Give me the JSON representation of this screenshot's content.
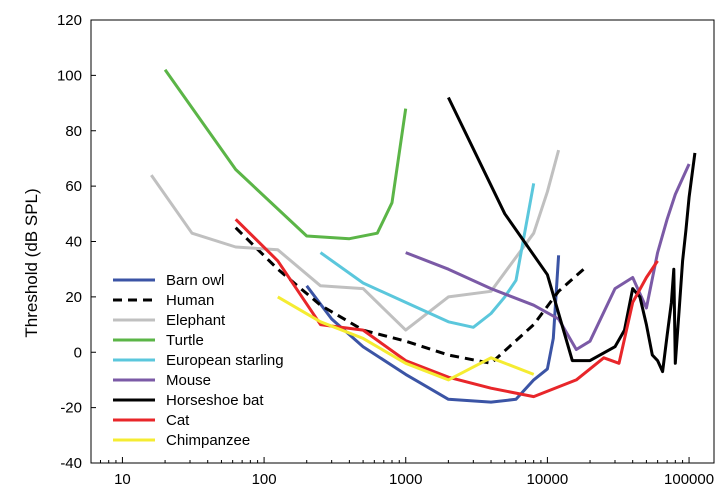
{
  "chart_data": {
    "type": "line",
    "title": "",
    "xlabel": "",
    "ylabel": "Threshold (dB SPL)",
    "xscale": "log",
    "xlim": [
      6,
      150000
    ],
    "ylim": [
      -40,
      120
    ],
    "yticks": [
      -40,
      -20,
      0,
      20,
      40,
      60,
      80,
      100,
      120
    ],
    "yticklabels": [
      "-40",
      "-20",
      "0",
      "20",
      "40",
      "60",
      "80",
      "100",
      "120"
    ],
    "xticks": [
      10,
      100,
      1000,
      10000,
      100000
    ],
    "xticklabels": [
      "10",
      "100",
      "1000",
      "10000",
      "100000"
    ],
    "grid": false,
    "legend_position": "bottom-left",
    "series": [
      {
        "name": "Barn owl",
        "color": "#3b54a5",
        "dash": "solid",
        "x": [
          200,
          300,
          500,
          1000,
          2000,
          4000,
          6000,
          8000,
          10000,
          11000,
          12000
        ],
        "y": [
          24,
          12,
          2,
          -8,
          -17,
          -18,
          -17,
          -10,
          -6,
          5,
          35
        ]
      },
      {
        "name": "Human",
        "color": "#000000",
        "dash": "dashed",
        "x": [
          63,
          125,
          250,
          500,
          1000,
          2000,
          4000,
          8000,
          12000,
          18000
        ],
        "y": [
          45,
          30,
          17,
          8,
          4,
          -1,
          -4,
          10,
          22,
          30
        ]
      },
      {
        "name": "Elephant",
        "color": "#c0c0c0",
        "dash": "solid",
        "x": [
          16,
          31,
          63,
          125,
          250,
          500,
          1000,
          2000,
          4000,
          8000,
          10000,
          12000
        ],
        "y": [
          64,
          43,
          38,
          37,
          24,
          23,
          8,
          20,
          22,
          43,
          58,
          73
        ]
      },
      {
        "name": "Turtle",
        "color": "#5bb547",
        "dash": "solid",
        "x": [
          20,
          63,
          200,
          400,
          630,
          800,
          1000
        ],
        "y": [
          102,
          66,
          42,
          41,
          43,
          54,
          88
        ]
      },
      {
        "name": "European starling",
        "color": "#5bc7dc",
        "dash": "solid",
        "x": [
          250,
          500,
          1000,
          2000,
          3000,
          4000,
          5000,
          6000,
          8000
        ],
        "y": [
          36,
          25,
          18,
          11,
          9,
          14,
          20,
          26,
          61
        ]
      },
      {
        "name": "Mouse",
        "color": "#7b5aa6",
        "dash": "solid",
        "x": [
          1000,
          2000,
          4000,
          8000,
          12000,
          16000,
          20000,
          30000,
          40000,
          50000,
          60000,
          70000,
          80000,
          100000
        ],
        "y": [
          36,
          30,
          23,
          17,
          12,
          1,
          4,
          23,
          27,
          16,
          36,
          48,
          57,
          68
        ]
      },
      {
        "name": "Horseshoe bat",
        "color": "#000000",
        "dash": "solid",
        "x": [
          2000,
          5000,
          10000,
          15000,
          20000,
          30000,
          35000,
          40000,
          45000,
          50000,
          55000,
          60000,
          65000,
          70000,
          75000,
          78000,
          80000,
          85000,
          90000,
          95000,
          100000,
          110000
        ],
        "y": [
          92,
          50,
          28,
          -3,
          -3,
          2,
          8,
          23,
          20,
          10,
          -1,
          -3,
          -7,
          6,
          18,
          30,
          -4,
          15,
          33,
          44,
          56,
          72
        ]
      },
      {
        "name": "Cat",
        "color": "#e8262a",
        "dash": "solid",
        "x": [
          63,
          125,
          250,
          500,
          1000,
          2000,
          4000,
          8000,
          16000,
          25000,
          32000,
          40000,
          50000,
          60000
        ],
        "y": [
          48,
          33,
          10,
          8,
          -3,
          -9,
          -13,
          -16,
          -10,
          -2,
          -4,
          18,
          27,
          33
        ]
      },
      {
        "name": "Chimpanzee",
        "color": "#f5ec32",
        "dash": "solid",
        "x": [
          125,
          250,
          500,
          1000,
          2000,
          4000,
          8000
        ],
        "y": [
          20,
          11,
          5,
          -4,
          -10,
          -2,
          -8
        ]
      }
    ]
  }
}
